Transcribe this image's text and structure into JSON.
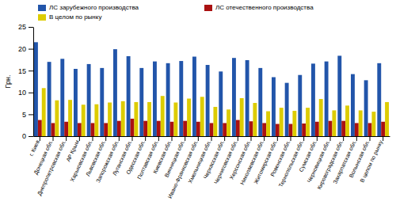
{
  "chart_data": {
    "type": "bar",
    "categories": [
      "г. Киев",
      "Донецкая обл.",
      "Днепропетровская обл.",
      "АР Крым",
      "Харьковская обл.",
      "Львовская обл.",
      "Запорожская обл.",
      "Луганская обл.",
      "Одесская обл.",
      "Полтавская обл.",
      "Киевская обл.",
      "Винницкая обл.",
      "Ивано-Франковская обл.",
      "Хмельницкая обл.",
      "Черкасская обл.",
      "Черниговская обл.",
      "Херсонская обл.",
      "Николаевская обл.",
      "Житомирская обл.",
      "Ровенская обл.",
      "Тернопольская обл.",
      "Сумская обл.",
      "Черновицкая обл.",
      "Кировоградская обл.",
      "Закарпатская обл.",
      "Волынская обл.",
      "В целом по рынку"
    ],
    "series": [
      {
        "name": "ЛС зарубежного производства",
        "color": "#2255aa",
        "values": [
          21.5,
          17.0,
          17.7,
          15.4,
          16.5,
          15.6,
          19.9,
          18.3,
          15.6,
          17.1,
          16.7,
          17.2,
          18.2,
          16.3,
          14.8,
          17.9,
          17.4,
          15.6,
          13.5,
          12.2,
          14.0,
          16.6,
          17.1,
          18.4,
          14.2,
          12.8,
          16.7
        ]
      },
      {
        "name": "ЛС отечественного производства",
        "color": "#aa1111",
        "values": [
          3.7,
          3.0,
          3.3,
          3.0,
          3.0,
          3.0,
          3.5,
          4.0,
          3.5,
          3.5,
          3.3,
          3.5,
          3.3,
          3.0,
          3.0,
          3.7,
          3.4,
          3.0,
          2.8,
          2.8,
          2.9,
          3.3,
          3.5,
          3.5,
          3.0,
          3.0,
          3.3
        ]
      },
      {
        "name": "В целом по рынку",
        "color": "#ddcc00",
        "values": [
          11.0,
          8.2,
          8.3,
          7.2,
          7.3,
          7.7,
          8.0,
          7.8,
          7.8,
          9.2,
          7.7,
          8.6,
          9.0,
          6.7,
          6.1,
          8.7,
          7.6,
          5.7,
          6.5,
          5.8,
          6.5,
          8.5,
          5.9,
          7.0,
          5.9,
          5.6,
          7.8
        ]
      }
    ],
    "ylabel": "Грн.",
    "ylim": [
      0,
      25
    ],
    "yticks": [
      0,
      5,
      10,
      15,
      20,
      25
    ],
    "legend": "upper left",
    "grid": false
  }
}
